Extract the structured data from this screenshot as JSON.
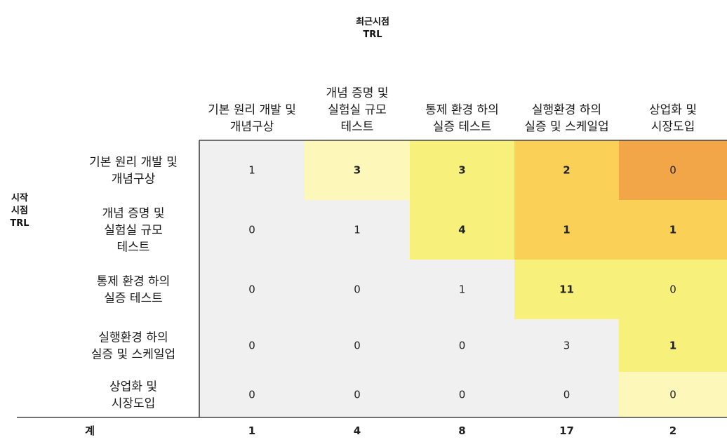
{
  "chart_data": {
    "type": "heatmap",
    "title": "최근시점\nTRL",
    "ylabel": "시작\n시점\nTRL",
    "columns": [
      "기본 원리 개발 및\n개념구상",
      "개념 증명 및\n실험실 규모\n테스트",
      "통제 환경 하의\n실증 테스트",
      "실행환경 하의\n실증 및 스케일업",
      "상업화 및\n시장도입"
    ],
    "rows": [
      "기본 원리 개발 및\n개념구상",
      "개념 증명 및\n실험실 규모\n테스트",
      "통제 환경 하의\n실증 테스트",
      "실행환경 하의\n실증 및 스케일업",
      "상업화 및\n시장도입"
    ],
    "values": [
      [
        1,
        3,
        3,
        2,
        0
      ],
      [
        0,
        1,
        4,
        1,
        1
      ],
      [
        0,
        0,
        1,
        11,
        0
      ],
      [
        0,
        0,
        0,
        3,
        1
      ],
      [
        0,
        0,
        0,
        0,
        0
      ]
    ],
    "bold_values": [
      [
        false,
        true,
        true,
        true,
        false
      ],
      [
        false,
        false,
        true,
        true,
        true
      ],
      [
        false,
        false,
        false,
        true,
        false
      ],
      [
        false,
        false,
        false,
        false,
        true
      ],
      [
        false,
        false,
        false,
        false,
        false
      ]
    ],
    "cell_colors": [
      [
        "#f0f0f0",
        "#fdf7b9",
        "#f7f07a",
        "#fad056",
        "#f3a648"
      ],
      [
        "#f0f0f0",
        "#f0f0f0",
        "#f7f07a",
        "#fad056",
        "#fad056"
      ],
      [
        "#f0f0f0",
        "#f0f0f0",
        "#f0f0f0",
        "#f7f07a",
        "#f7f07a"
      ],
      [
        "#f0f0f0",
        "#f0f0f0",
        "#f0f0f0",
        "#f0f0f0",
        "#f7f07a"
      ],
      [
        "#f0f0f0",
        "#f0f0f0",
        "#f0f0f0",
        "#f0f0f0",
        "#fdf7b9"
      ]
    ],
    "totals_label": "계",
    "totals": [
      1,
      4,
      8,
      17,
      2
    ]
  }
}
